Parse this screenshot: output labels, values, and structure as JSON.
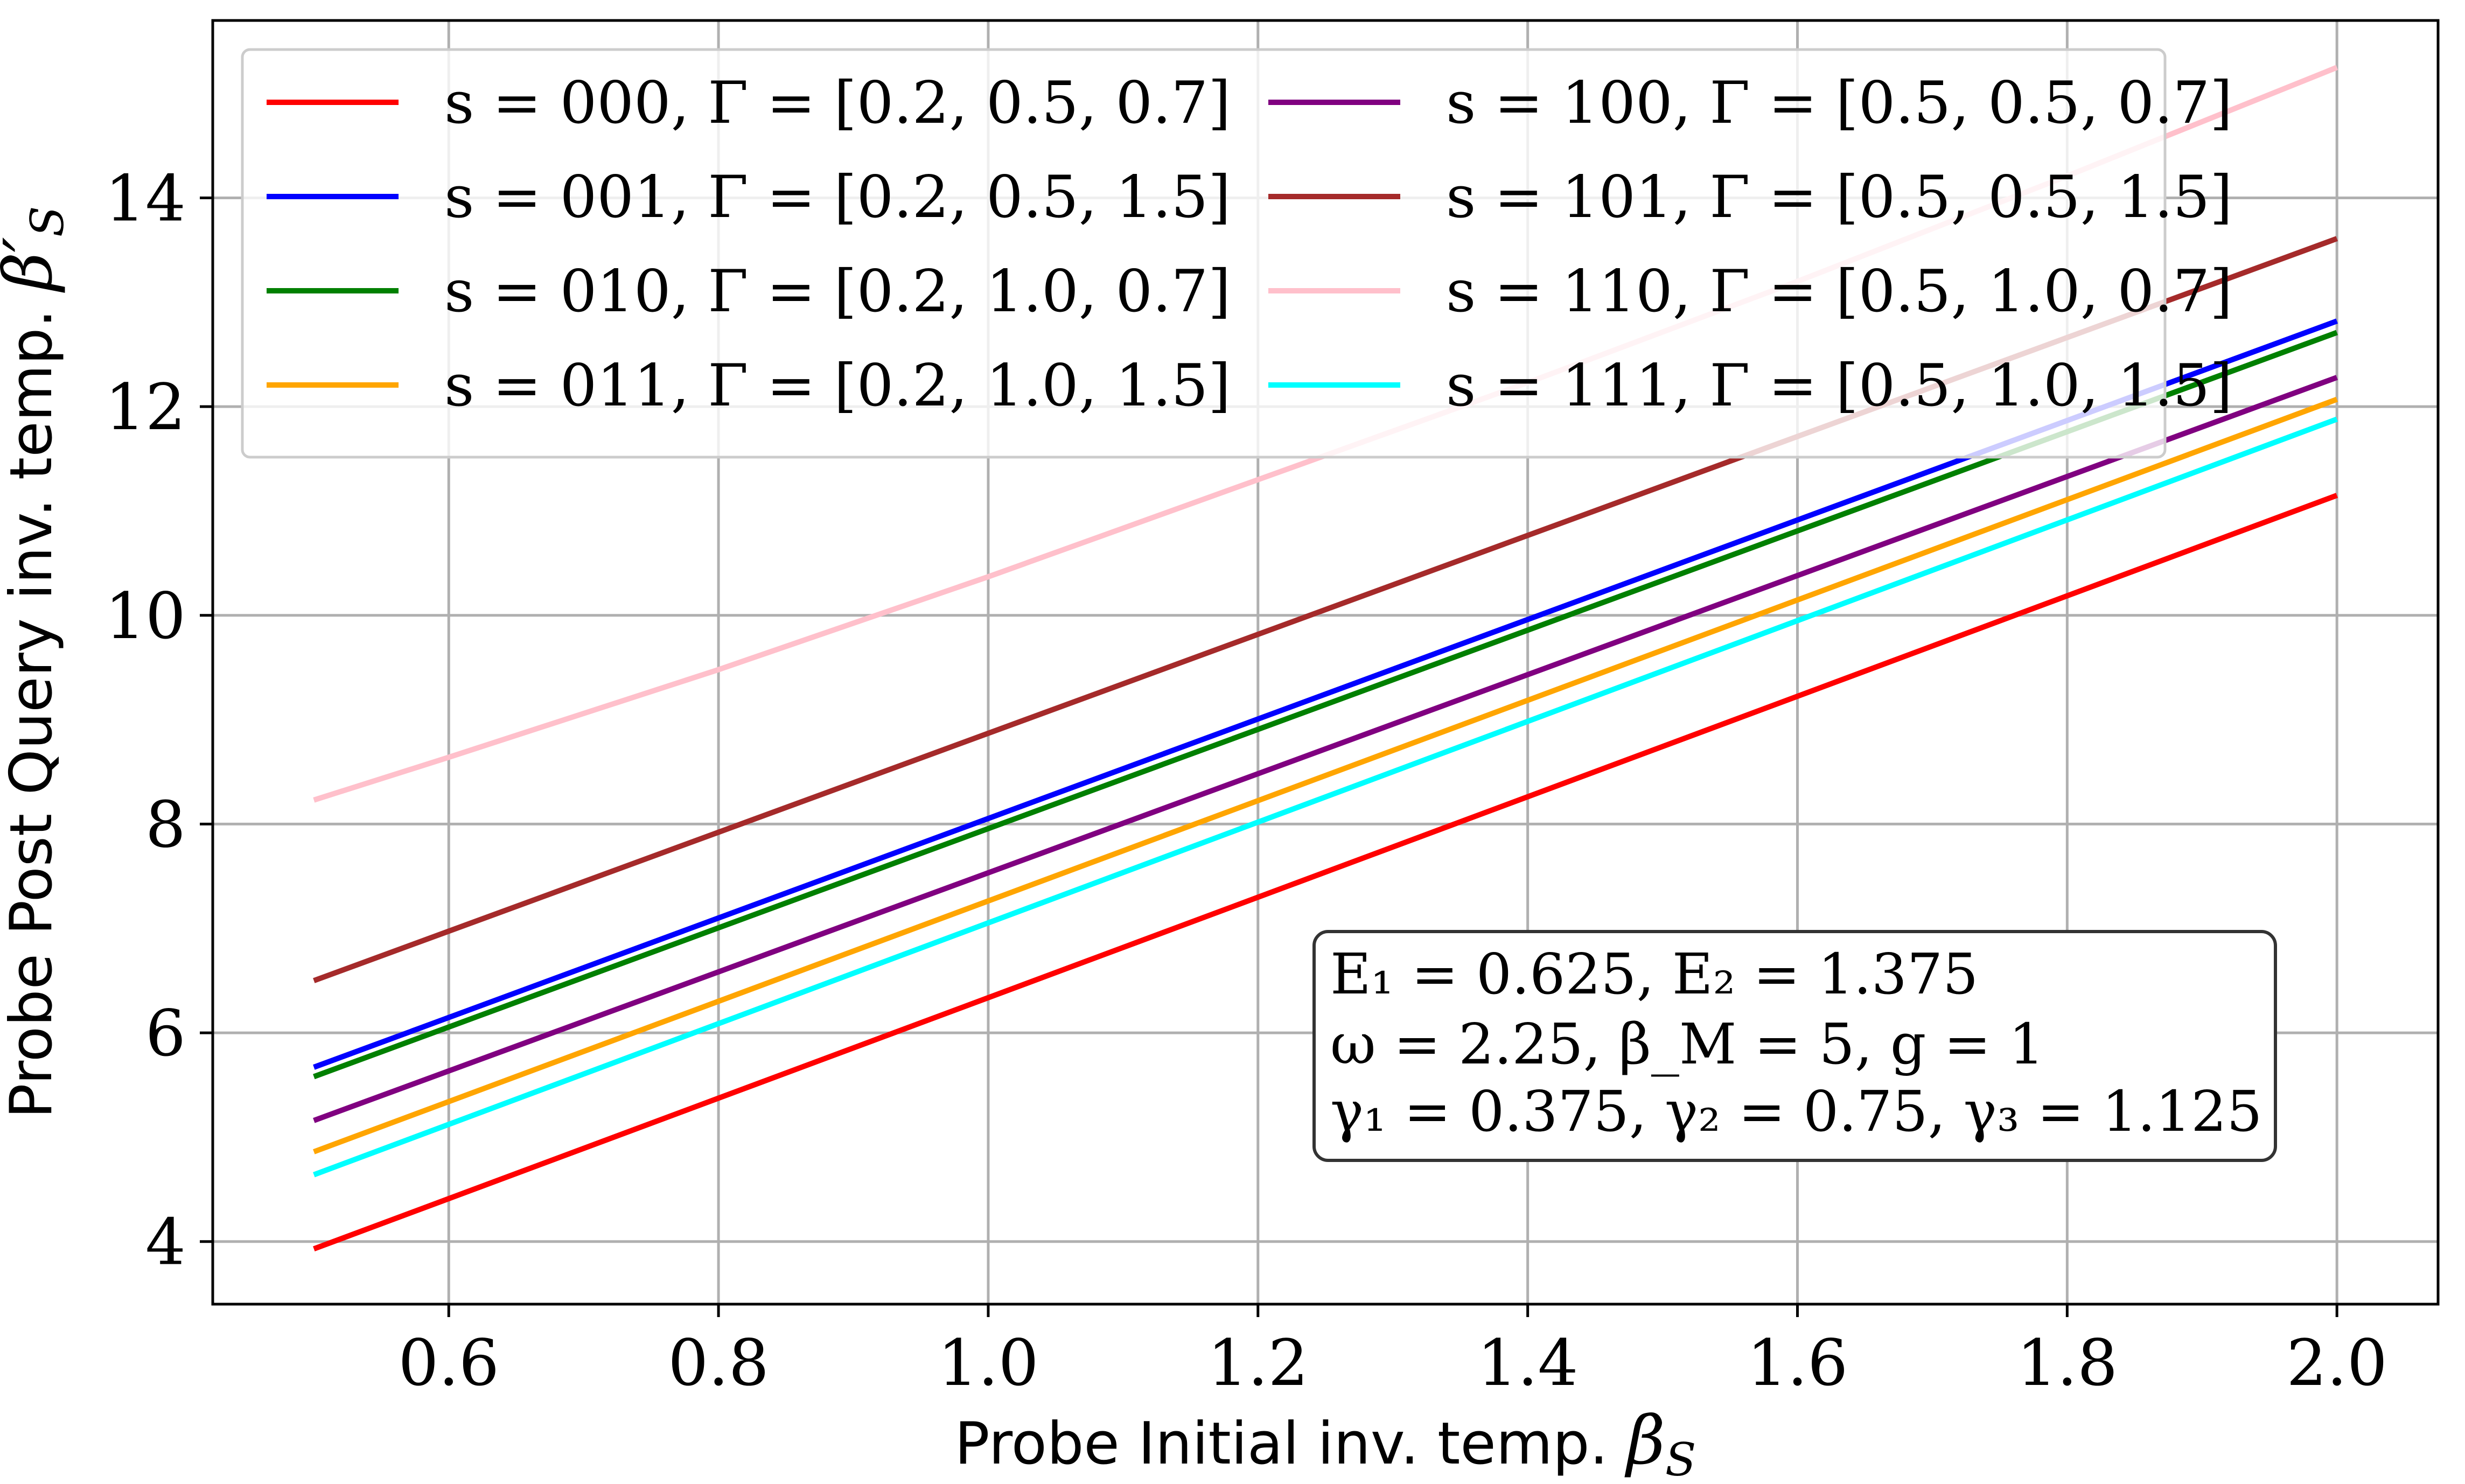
{
  "chart_data": {
    "type": "line",
    "xlabel": {
      "text": "Probe Initial inv. temp. ",
      "math": "β",
      "sub": "S"
    },
    "ylabel": {
      "text": "Probe Post Query inv. temp. ",
      "math": "β′",
      "sub": "S"
    },
    "xlim": [
      0.425,
      2.075
    ],
    "ylim": [
      3.4,
      15.7
    ],
    "xticks": [
      "0.6",
      "0.8",
      "1.0",
      "1.2",
      "1.4",
      "1.6",
      "1.8",
      "2.0"
    ],
    "xtick_values": [
      0.6,
      0.8,
      1.0,
      1.2,
      1.4,
      1.6,
      1.8,
      2.0
    ],
    "yticks": [
      "4",
      "6",
      "8",
      "10",
      "12",
      "14"
    ],
    "ytick_values": [
      4,
      6,
      8,
      10,
      12,
      14
    ],
    "grid": true,
    "legend_position": "top-left",
    "series": [
      {
        "name": "s = 000, Γ = [0.2, 0.5, 0.7]",
        "color": "#ff0000",
        "x": [
          0.5,
          2.0
        ],
        "y": [
          3.93,
          11.15
        ]
      },
      {
        "name": "s = 001, Γ = [0.2, 0.5, 1.5]",
        "color": "#0000ff",
        "x": [
          0.5,
          2.0
        ],
        "y": [
          5.67,
          12.82
        ]
      },
      {
        "name": "s = 010, Γ = [0.2, 1.0, 0.7]",
        "color": "#008000",
        "x": [
          0.5,
          2.0
        ],
        "y": [
          5.58,
          12.71
        ]
      },
      {
        "name": "s = 011, Γ = [0.2, 1.0, 1.5]",
        "color": "#ffa500",
        "x": [
          0.5,
          2.0
        ],
        "y": [
          4.86,
          12.07
        ]
      },
      {
        "name": "s = 100, Γ = [0.5, 0.5, 0.7]",
        "color": "#800080",
        "x": [
          0.5,
          2.0
        ],
        "y": [
          5.16,
          12.28
        ]
      },
      {
        "name": "s = 101, Γ = [0.5, 0.5, 1.5]",
        "color": "#a52a2a",
        "x": [
          0.5,
          2.0
        ],
        "y": [
          6.5,
          13.61
        ]
      },
      {
        "name": "s = 110, Γ = [0.5, 1.0, 0.7]",
        "color": "#ffc0cb",
        "x": [
          0.5,
          0.6,
          0.8,
          1.0,
          1.2,
          1.4,
          1.6,
          1.8,
          2.0
        ],
        "y": [
          8.23,
          8.64,
          9.48,
          10.37,
          11.3,
          12.23,
          13.2,
          14.21,
          15.25
        ]
      },
      {
        "name": "s = 111, Γ = [0.5, 1.0, 1.5]",
        "color": "#00ffff",
        "x": [
          0.5,
          2.0
        ],
        "y": [
          4.64,
          11.88
        ]
      }
    ],
    "annotation": [
      "E₁ = 0.625, E₂ = 1.375",
      "ω = 2.25, β_M = 5, g = 1",
      "γ₁ = 0.375, γ₂ = 0.75, γ₃ = 1.125"
    ]
  }
}
